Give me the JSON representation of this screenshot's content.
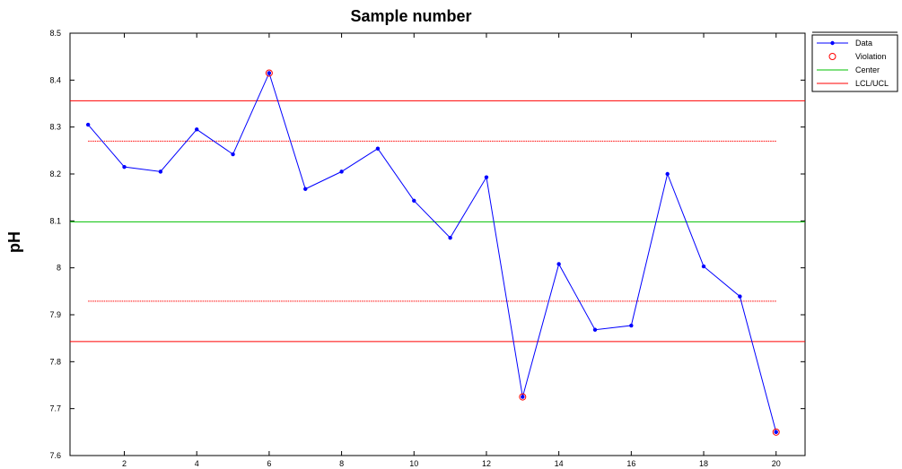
{
  "chart_data": {
    "type": "line",
    "title": "Sample number",
    "xlabel": "",
    "ylabel": "pH",
    "xlim": [
      0.5,
      20.8
    ],
    "ylim": [
      7.6,
      8.5
    ],
    "xticks": [
      2,
      4,
      6,
      8,
      10,
      12,
      14,
      16,
      18,
      20
    ],
    "yticks": [
      7.6,
      7.7,
      7.8,
      7.9,
      8.0,
      8.1,
      8.2,
      8.3,
      8.4,
      8.5
    ],
    "ytick_labels": [
      "7.6",
      "7.7",
      "7.8",
      "7.9",
      "8",
      "8.1",
      "8.2",
      "8.3",
      "8.4",
      "8.5"
    ],
    "grid": false,
    "legend_position": "top-right, outside plot area",
    "series": [
      {
        "name": "Data",
        "color": "#0000ff",
        "x": [
          1,
          2,
          3,
          4,
          5,
          6,
          7,
          8,
          9,
          10,
          11,
          12,
          13,
          14,
          15,
          16,
          17,
          18,
          19,
          20
        ],
        "y": [
          8.305,
          8.215,
          8.205,
          8.295,
          8.242,
          8.415,
          8.168,
          8.205,
          8.254,
          8.143,
          8.064,
          8.193,
          7.725,
          8.008,
          7.868,
          7.877,
          8.2,
          8.003,
          7.939,
          7.65
        ]
      },
      {
        "name": "Violation",
        "color": "#ff0000",
        "x": [
          6,
          13,
          20
        ],
        "y": [
          8.415,
          7.725,
          7.65
        ]
      }
    ],
    "reference_lines": [
      {
        "name": "Center",
        "color": "#00c000",
        "y": 8.098,
        "style": "solid"
      },
      {
        "name": "LCL/UCL",
        "color": "#ff0000",
        "y": 8.356,
        "style": "solid"
      },
      {
        "name": "LCL/UCL",
        "color": "#ff0000",
        "y": 7.843,
        "style": "solid"
      },
      {
        "name": "",
        "color": "#ff0000",
        "y": 8.27,
        "style": "dotted"
      },
      {
        "name": "",
        "color": "#ff0000",
        "y": 7.929,
        "style": "dotted"
      }
    ],
    "legend": [
      {
        "label": "Data",
        "color": "#0000ff",
        "marker": "dot-line"
      },
      {
        "label": "Violation",
        "color": "#ff0000",
        "marker": "circle"
      },
      {
        "label": "Center",
        "color": "#00c000",
        "marker": "line"
      },
      {
        "label": "LCL/UCL",
        "color": "#ff0000",
        "marker": "line"
      }
    ]
  }
}
